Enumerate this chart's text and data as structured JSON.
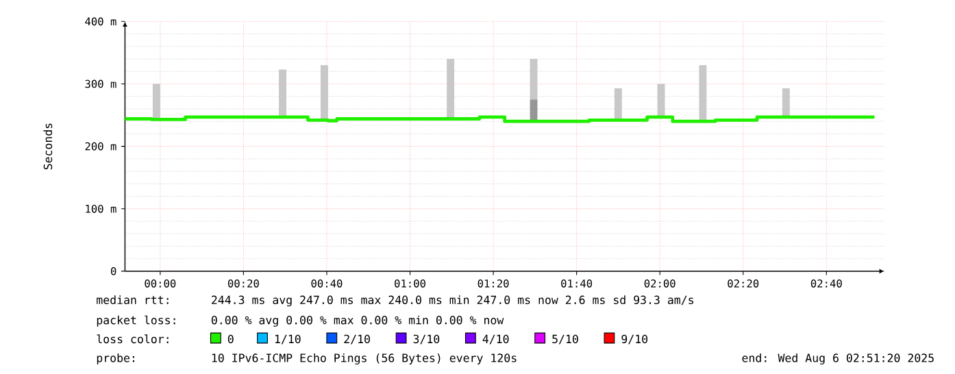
{
  "chart_data": {
    "type": "step",
    "ylabel": "Seconds",
    "xlim": [
      -0.141,
      2.899
    ],
    "ylim": [
      0,
      400
    ],
    "xticks": [
      {
        "value": 0,
        "label": "00:00"
      },
      {
        "value": 0.3333,
        "label": "00:20"
      },
      {
        "value": 0.6667,
        "label": "00:40"
      },
      {
        "value": 1,
        "label": "01:00"
      },
      {
        "value": 1.3333,
        "label": "01:20"
      },
      {
        "value": 1.6667,
        "label": "01:40"
      },
      {
        "value": 2,
        "label": "02:00"
      },
      {
        "value": 2.3333,
        "label": "02:20"
      },
      {
        "value": 2.6667,
        "label": "02:40"
      }
    ],
    "yticks": [
      0,
      {
        "value": 100,
        "label": "100 m"
      },
      {
        "value": 200,
        "label": "200 m"
      },
      {
        "value": 300,
        "label": "300 m"
      },
      {
        "value": 400,
        "label": "400 m"
      }
    ],
    "grid": true,
    "legend": "bottom",
    "series": [
      {
        "type": "bar",
        "color": "#c8c8c8",
        "x": [
          -0.015,
          0.49,
          0.657,
          1.162,
          1.495,
          1.833,
          2.005,
          2.172,
          2.505
        ],
        "base": [
          243,
          247,
          241,
          244,
          275,
          242,
          247,
          240,
          247
        ],
        "values": [
          57,
          76,
          89,
          96,
          65,
          51,
          53,
          90,
          46
        ]
      },
      {
        "type": "bar",
        "color": "#969696",
        "x": [
          1.495
        ],
        "base": [
          242
        ],
        "values": [
          33
        ]
      },
      {
        "name": "0",
        "color": "#20f000",
        "x": [
          -0.141,
          -0.035,
          0.101,
          0.591,
          0.672,
          0.707,
          1.278,
          1.379,
          1.717,
          1.949,
          2.051,
          2.222,
          2.389,
          2.859
        ],
        "values": [
          244,
          243,
          247,
          242,
          241,
          244,
          247,
          240,
          242,
          247,
          240,
          242,
          247,
          247
        ]
      },
      {
        "name": "1/10",
        "color": "#00b8ff"
      },
      {
        "name": "2/10",
        "color": "#0059ff"
      },
      {
        "name": "3/10",
        "color": "#5e00ff"
      },
      {
        "name": "4/10",
        "color": "#7e00ff"
      },
      {
        "name": "5/10",
        "color": "#dd00ff"
      },
      {
        "name": "9/10",
        "color": "#ff0000"
      }
    ],
    "annotations": [
      "median rtt:",
      "244.3 ms avg  247.0 ms max  240.0 ms min  247.0 ms now  2.6 ms sd  93.3   am/s",
      "packet loss:",
      "0.00 % avg  0.00 % max  0.00 % min  0.00 % now",
      "loss color:",
      "probe:",
      "10 IPv6-ICMP Echo Pings (56 Bytes) every 120s",
      "end: Wed Aug  6 02:51:20 2025"
    ]
  }
}
